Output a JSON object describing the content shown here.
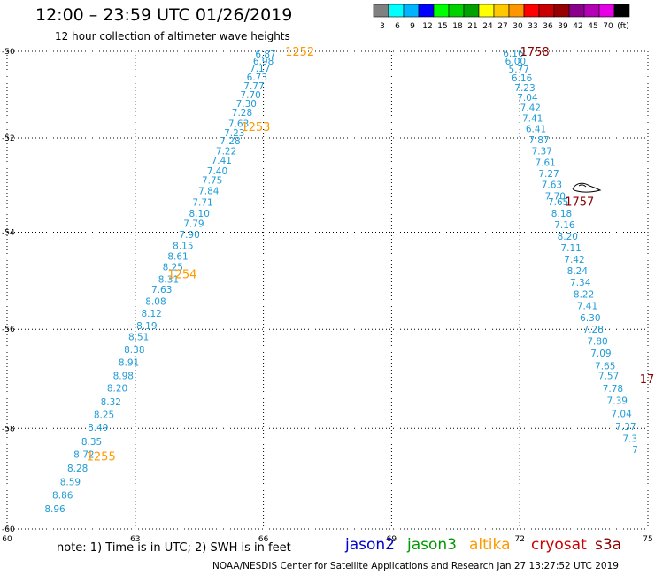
{
  "title": "12:00 – 23:59 UTC 01/26/2019",
  "subtitle": "12 hour collection of altimeter wave heights",
  "legend": {
    "colors": [
      "#808080",
      "#00ffff",
      "#00b4ff",
      "#0000ff",
      "#00ff00",
      "#00d200",
      "#00a000",
      "#ffff00",
      "#ffc800",
      "#ff9600",
      "#ff0000",
      "#c80000",
      "#960000",
      "#8b008b",
      "#b400b4",
      "#e600e6",
      "#000000"
    ],
    "labels": [
      "3",
      "6",
      "9",
      "12",
      "15",
      "18",
      "21",
      "24",
      "27",
      "30",
      "33",
      "36",
      "39",
      "42",
      "45",
      "70",
      "(ft)"
    ]
  },
  "chart_data": {
    "type": "scatter",
    "x_axis": {
      "min": 60,
      "max": 75,
      "ticks": [
        "60",
        "63",
        "66",
        "69",
        "72",
        "75"
      ]
    },
    "y_axis": {
      "min": -60,
      "max": -50,
      "ticks": [
        "-50",
        "-52",
        "-54",
        "-56",
        "-58",
        "-60"
      ]
    },
    "grid": true,
    "value_color": "#1e9bd7",
    "tracks": [
      {
        "satellite": "altika",
        "label_color": "#ff9900",
        "points": [
          {
            "lon": 66.05,
            "lat": -50.08,
            "v": "6.87"
          },
          {
            "lon": 66.0,
            "lat": -50.25,
            "v": "6.98"
          },
          {
            "lon": 65.92,
            "lat": -50.43,
            "v": "7.17"
          },
          {
            "lon": 65.85,
            "lat": -50.63,
            "v": "6.73"
          },
          {
            "lon": 65.78,
            "lat": -50.84,
            "v": "7.77"
          },
          {
            "lon": 65.7,
            "lat": -51.04,
            "v": "7.70"
          },
          {
            "lon": 65.6,
            "lat": -51.24,
            "v": "7.30"
          },
          {
            "lon": 65.5,
            "lat": -51.44,
            "v": "7.28"
          },
          {
            "lon": 65.42,
            "lat": -51.68,
            "v": "7.63"
          },
          {
            "lon": 65.32,
            "lat": -51.88,
            "v": "7.23"
          },
          {
            "lon": 65.22,
            "lat": -52.06,
            "v": "7.28"
          },
          {
            "lon": 65.13,
            "lat": -52.28,
            "v": "7.22"
          },
          {
            "lon": 65.02,
            "lat": -52.48,
            "v": "7.41"
          },
          {
            "lon": 64.92,
            "lat": -52.7,
            "v": "7.40"
          },
          {
            "lon": 64.8,
            "lat": -52.9,
            "v": "7.75"
          },
          {
            "lon": 64.72,
            "lat": -53.13,
            "v": "7.84"
          },
          {
            "lon": 64.58,
            "lat": -53.37,
            "v": "7.71"
          },
          {
            "lon": 64.5,
            "lat": -53.6,
            "v": "8.10"
          },
          {
            "lon": 64.37,
            "lat": -53.82,
            "v": "7.79"
          },
          {
            "lon": 64.27,
            "lat": -54.05,
            "v": "7.90"
          },
          {
            "lon": 64.12,
            "lat": -54.28,
            "v": "8.15"
          },
          {
            "lon": 64.0,
            "lat": -54.5,
            "v": "8.61"
          },
          {
            "lon": 63.88,
            "lat": -54.72,
            "v": "8.25"
          },
          {
            "lon": 63.78,
            "lat": -54.97,
            "v": "8.31"
          },
          {
            "lon": 63.62,
            "lat": -55.18,
            "v": "7.63"
          },
          {
            "lon": 63.48,
            "lat": -55.43,
            "v": "8.08"
          },
          {
            "lon": 63.38,
            "lat": -55.67,
            "v": "8.12"
          },
          {
            "lon": 63.27,
            "lat": -55.92,
            "v": "8.19"
          },
          {
            "lon": 63.08,
            "lat": -56.15,
            "v": "8.51"
          },
          {
            "lon": 62.98,
            "lat": -56.41,
            "v": "8.38"
          },
          {
            "lon": 62.85,
            "lat": -56.67,
            "v": "8.91"
          },
          {
            "lon": 62.72,
            "lat": -56.94,
            "v": "8.98"
          },
          {
            "lon": 62.58,
            "lat": -57.19,
            "v": "8.20"
          },
          {
            "lon": 62.43,
            "lat": -57.46,
            "v": "8.32"
          },
          {
            "lon": 62.27,
            "lat": -57.72,
            "v": "8.25"
          },
          {
            "lon": 62.13,
            "lat": -57.98,
            "v": "8.49"
          },
          {
            "lon": 61.98,
            "lat": -58.26,
            "v": "8.35"
          },
          {
            "lon": 61.8,
            "lat": -58.52,
            "v": "8.72"
          },
          {
            "lon": 61.65,
            "lat": -58.79,
            "v": "8.28"
          },
          {
            "lon": 61.48,
            "lat": -59.06,
            "v": "8.59"
          },
          {
            "lon": 61.3,
            "lat": -59.33,
            "v": "8.86"
          },
          {
            "lon": 61.12,
            "lat": -59.6,
            "v": "8.96"
          }
        ],
        "time_labels": [
          {
            "lon": 66.85,
            "lat": -50.0,
            "text": "1252"
          },
          {
            "lon": 65.82,
            "lat": -51.75,
            "text": "1253"
          },
          {
            "lon": 64.1,
            "lat": -54.86,
            "text": "1254"
          },
          {
            "lon": 62.2,
            "lat": -58.55,
            "text": "1255"
          }
        ]
      },
      {
        "satellite": "cryosat",
        "label_color": "#8b0000",
        "points": [
          {
            "lon": 71.85,
            "lat": -50.05,
            "v": "6.16"
          },
          {
            "lon": 71.9,
            "lat": -50.25,
            "v": "6.00"
          },
          {
            "lon": 71.98,
            "lat": -50.45,
            "v": "5.77"
          },
          {
            "lon": 72.05,
            "lat": -50.65,
            "v": "6.16"
          },
          {
            "lon": 72.12,
            "lat": -50.88,
            "v": "7.23"
          },
          {
            "lon": 72.18,
            "lat": -51.1,
            "v": "7.04"
          },
          {
            "lon": 72.25,
            "lat": -51.33,
            "v": "7.42"
          },
          {
            "lon": 72.3,
            "lat": -51.56,
            "v": "7.41"
          },
          {
            "lon": 72.38,
            "lat": -51.8,
            "v": "6.41"
          },
          {
            "lon": 72.45,
            "lat": -52.04,
            "v": "7.87"
          },
          {
            "lon": 72.52,
            "lat": -52.28,
            "v": "7.37"
          },
          {
            "lon": 72.6,
            "lat": -52.52,
            "v": "7.61"
          },
          {
            "lon": 72.68,
            "lat": -52.76,
            "v": "7.27"
          },
          {
            "lon": 72.75,
            "lat": -53.0,
            "v": "7.63"
          },
          {
            "lon": 72.83,
            "lat": -53.24,
            "v": "7.70"
          },
          {
            "lon": 72.9,
            "lat": -53.36,
            "v": "7.65"
          },
          {
            "lon": 72.98,
            "lat": -53.6,
            "v": "8.18"
          },
          {
            "lon": 73.05,
            "lat": -53.84,
            "v": "7.16"
          },
          {
            "lon": 73.12,
            "lat": -54.08,
            "v": "8.20"
          },
          {
            "lon": 73.2,
            "lat": -54.32,
            "v": "7.11"
          },
          {
            "lon": 73.28,
            "lat": -54.56,
            "v": "7.42"
          },
          {
            "lon": 73.35,
            "lat": -54.8,
            "v": "8.24"
          },
          {
            "lon": 73.42,
            "lat": -55.04,
            "v": "7.34"
          },
          {
            "lon": 73.5,
            "lat": -55.28,
            "v": "8.22"
          },
          {
            "lon": 73.58,
            "lat": -55.52,
            "v": "7.41"
          },
          {
            "lon": 73.65,
            "lat": -55.76,
            "v": "6.30"
          },
          {
            "lon": 73.72,
            "lat": -56.0,
            "v": "7.28"
          },
          {
            "lon": 73.82,
            "lat": -56.24,
            "v": "7.80"
          },
          {
            "lon": 73.9,
            "lat": -56.48,
            "v": "7.09"
          },
          {
            "lon": 74.0,
            "lat": -56.74,
            "v": "7.65"
          },
          {
            "lon": 74.08,
            "lat": -56.94,
            "v": "7.57"
          },
          {
            "lon": 74.18,
            "lat": -57.2,
            "v": "7.78"
          },
          {
            "lon": 74.28,
            "lat": -57.44,
            "v": "7.39"
          },
          {
            "lon": 74.38,
            "lat": -57.7,
            "v": "7.04"
          },
          {
            "lon": 74.48,
            "lat": -57.96,
            "v": "7.37"
          },
          {
            "lon": 74.58,
            "lat": -58.2,
            "v": "7.3"
          },
          {
            "lon": 74.7,
            "lat": -58.42,
            "v": "7"
          }
        ],
        "time_labels": [
          {
            "lon": 72.35,
            "lat": -50.0,
            "text": "1758"
          },
          {
            "lon": 73.4,
            "lat": -53.35,
            "text": "1757"
          },
          {
            "lon": 74.98,
            "lat": -57.0,
            "text": "17"
          }
        ]
      }
    ]
  },
  "note": "note:  1) Time is in UTC; 2) SWH is in feet",
  "satellites": [
    {
      "name": "jason2",
      "color": "#0000cc"
    },
    {
      "name": "jason3",
      "color": "#009900"
    },
    {
      "name": "altika",
      "color": "#ff9900"
    },
    {
      "name": "cryosat",
      "color": "#cc0000"
    },
    {
      "name": "s3a",
      "color": "#8b0000"
    }
  ],
  "footer": "NOAA/NESDIS Center for Satellite Applications and Research     Jan 27 13:27:52 UTC 2019"
}
